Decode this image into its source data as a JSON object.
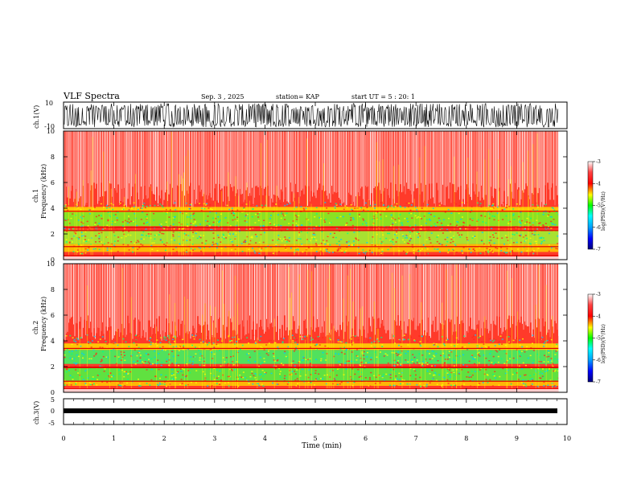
{
  "header": {
    "title": "VLF Spectra",
    "date": "Sep. 3 , 2025",
    "station": "station= KAP",
    "start_ut": "start UT = 5 : 20: 1"
  },
  "colors": {
    "background": "#ffffff",
    "axis": "#000000",
    "waveform": "#000000"
  },
  "chart_data": [
    {
      "type": "line",
      "ylabel": "ch.1(V)",
      "ylim": [
        -10,
        10
      ],
      "yticks": [
        "10",
        "-10"
      ],
      "xlim": [
        0,
        9.83
      ],
      "description_series": "dense noisy waveform, amplitude roughly -9 to +9 V"
    },
    {
      "type": "heatmap",
      "ylabel": "ch.1",
      "ylabel2": "Frequency (kHz)",
      "ylim": [
        0,
        10
      ],
      "yticks": [
        "0",
        "2",
        "4",
        "6",
        "8",
        "10"
      ],
      "xlim": [
        0,
        9.83
      ],
      "colorbar": {
        "label": "log(PSD)(V²/Hz)",
        "range": [
          -7,
          -3
        ],
        "ticks": [
          "-3",
          "-4",
          "-5",
          "-6",
          "-7"
        ]
      }
    },
    {
      "type": "heatmap",
      "ylabel": "ch.2",
      "ylabel2": "Frequency (kHz)",
      "ylim": [
        0,
        10
      ],
      "yticks": [
        "0",
        "2",
        "4",
        "6",
        "8",
        "10"
      ],
      "xlim": [
        0,
        9.83
      ],
      "colorbar": {
        "label": "log(PSD)(V²/Hz)",
        "range": [
          -7,
          -3
        ],
        "ticks": [
          "-3",
          "-4",
          "-5",
          "-6",
          "-7"
        ]
      }
    },
    {
      "type": "line",
      "ylabel": "ch.3(V)",
      "ylim": [
        -5,
        5
      ],
      "yticks": [
        "5",
        "0",
        "-5"
      ],
      "xlim": [
        0,
        9.83
      ],
      "xlabel": "Time (min)",
      "xticks": [
        "0",
        "1",
        "2",
        "3",
        "4",
        "5",
        "6",
        "7",
        "8",
        "9",
        "10"
      ],
      "xrange": [
        0,
        10
      ]
    }
  ]
}
